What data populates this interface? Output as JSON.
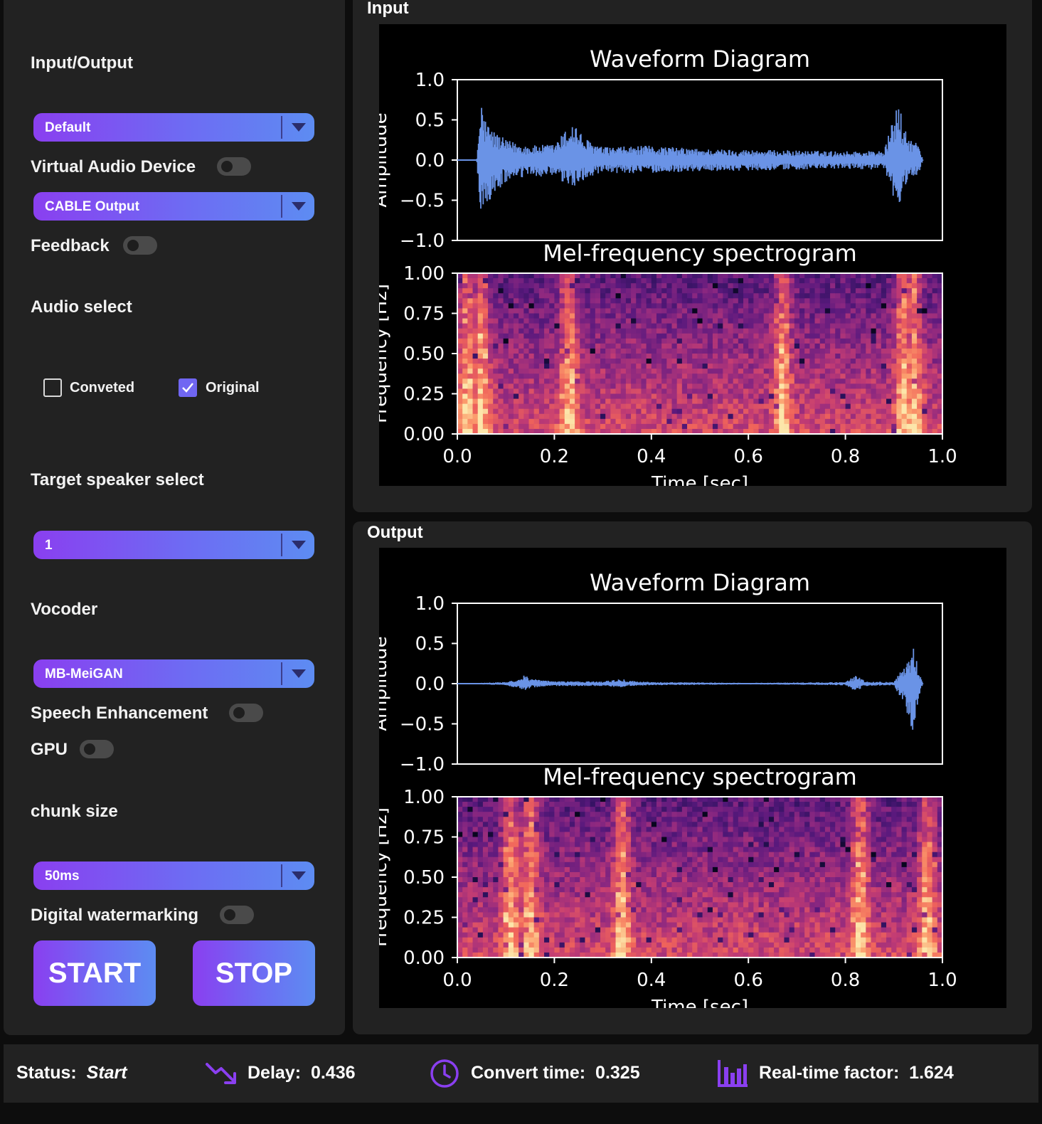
{
  "left_panel": {
    "io_label": "Input/Output",
    "input_device": "Default",
    "virtual_audio_label": "Virtual Audio Device",
    "virtual_audio_on": false,
    "output_device": "CABLE Output",
    "feedback_label": "Feedback",
    "feedback_on": false,
    "audio_select_label": "Audio select",
    "converted_label": "Conveted",
    "converted_checked": false,
    "original_label": "Original",
    "original_checked": true,
    "target_speaker_label": "Target speaker select",
    "target_speaker": "1",
    "vocoder_label": "Vocoder",
    "vocoder": "MB-MeiGAN",
    "speech_enh_label": "Speech Enhancement",
    "speech_enh_on": false,
    "gpu_label": "GPU",
    "gpu_on": false,
    "chunk_label": "chunk size",
    "chunk_size": "50ms",
    "watermark_label": "Digital watermarking",
    "watermark_on": false,
    "start_label": "START",
    "stop_label": "STOP"
  },
  "panels": {
    "input_title": "Input",
    "output_title": "Output"
  },
  "chart_data": [
    {
      "panel": "Input",
      "type": "line",
      "title": "Waveform Diagram",
      "xlabel": "",
      "ylabel": "Amplitude",
      "ylim": [
        -1.0,
        1.0
      ],
      "yticks": [
        "1.0",
        "0.5",
        "0.0",
        "−0.5",
        "−1.0"
      ],
      "color": "#6a93e6",
      "envelope": {
        "x": [
          0.0,
          0.02,
          0.04,
          0.045,
          0.05,
          0.055,
          0.07,
          0.1,
          0.15,
          0.2,
          0.22,
          0.24,
          0.26,
          0.3,
          0.4,
          0.5,
          0.6,
          0.7,
          0.8,
          0.88,
          0.9,
          0.91,
          0.92,
          0.93,
          0.95,
          0.96
        ],
        "upper": [
          0.0,
          0.0,
          0.0,
          0.45,
          0.78,
          0.55,
          0.4,
          0.25,
          0.18,
          0.2,
          0.35,
          0.5,
          0.28,
          0.16,
          0.18,
          0.14,
          0.13,
          0.12,
          0.11,
          0.12,
          0.55,
          0.75,
          0.4,
          0.3,
          0.2,
          0.0
        ],
        "lower": [
          0.0,
          0.0,
          0.0,
          -0.5,
          -0.7,
          -0.6,
          -0.5,
          -0.28,
          -0.2,
          -0.22,
          -0.3,
          -0.35,
          -0.25,
          -0.17,
          -0.16,
          -0.14,
          -0.13,
          -0.12,
          -0.11,
          -0.12,
          -0.5,
          -0.7,
          -0.35,
          -0.25,
          -0.2,
          0.0
        ]
      }
    },
    {
      "panel": "Input",
      "type": "heatmap",
      "title": "Mel-frequency spectrogram",
      "xlabel": "Time [sec]",
      "ylabel": "Frequency [Hz]",
      "xlim": [
        0.0,
        1.0
      ],
      "ylim": [
        0.0,
        1.0
      ],
      "xticks": [
        "0.0",
        "0.2",
        "0.4",
        "0.6",
        "0.8",
        "1.0"
      ],
      "yticks": [
        "1.00",
        "0.75",
        "0.50",
        "0.25",
        "0.00"
      ],
      "colormap": "magma",
      "hot_spots_x": [
        0.02,
        0.05,
        0.23,
        0.67,
        0.92,
        0.94
      ]
    },
    {
      "panel": "Output",
      "type": "line",
      "title": "Waveform Diagram",
      "xlabel": "",
      "ylabel": "Amplitude",
      "ylim": [
        -1.0,
        1.0
      ],
      "yticks": [
        "1.0",
        "0.5",
        "0.0",
        "−0.5",
        "−1.0"
      ],
      "color": "#6a93e6",
      "envelope": {
        "x": [
          0.0,
          0.04,
          0.05,
          0.1,
          0.13,
          0.14,
          0.15,
          0.2,
          0.3,
          0.34,
          0.35,
          0.4,
          0.6,
          0.8,
          0.82,
          0.83,
          0.84,
          0.9,
          0.93,
          0.94,
          0.95,
          0.96
        ],
        "upper": [
          0.0,
          0.0,
          0.01,
          0.02,
          0.06,
          0.12,
          0.06,
          0.03,
          0.03,
          0.06,
          0.04,
          0.02,
          0.01,
          0.02,
          0.1,
          0.08,
          0.03,
          0.02,
          0.3,
          0.48,
          0.2,
          0.0
        ],
        "lower": [
          0.0,
          0.0,
          -0.01,
          -0.02,
          -0.07,
          -0.1,
          -0.05,
          -0.03,
          -0.03,
          -0.05,
          -0.03,
          -0.02,
          -0.01,
          -0.02,
          -0.09,
          -0.07,
          -0.03,
          -0.02,
          -0.4,
          -0.78,
          -0.2,
          0.0
        ]
      }
    },
    {
      "panel": "Output",
      "type": "heatmap",
      "title": "Mel-frequency spectrogram",
      "xlabel": "Time [sec]",
      "ylabel": "Frequency [Hz]",
      "xlim": [
        0.0,
        1.0
      ],
      "ylim": [
        0.0,
        1.0
      ],
      "xticks": [
        "0.0",
        "0.2",
        "0.4",
        "0.6",
        "0.8",
        "1.0"
      ],
      "yticks": [
        "1.00",
        "0.75",
        "0.50",
        "0.25",
        "0.00"
      ],
      "colormap": "magma",
      "hot_spots_x": [
        0.11,
        0.15,
        0.34,
        0.83,
        0.97
      ]
    }
  ],
  "status": {
    "status_label": "Status:",
    "status_value": "Start",
    "delay_label": "Delay:",
    "delay_value": "0.436",
    "convert_label": "Convert time:",
    "convert_value": "0.325",
    "rtf_label": "Real-time factor:",
    "rtf_value": "1.624",
    "icon_color": "#8a3ff0"
  }
}
